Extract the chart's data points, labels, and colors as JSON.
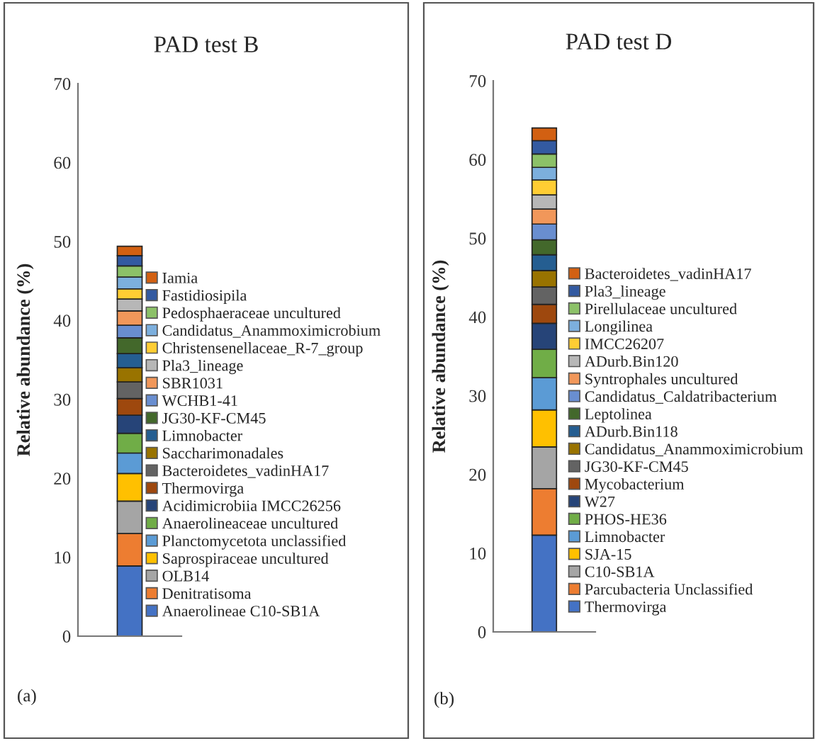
{
  "chart_data": [
    {
      "type": "bar",
      "title": "PAD test B",
      "ylabel": "Relative abundance (%)",
      "categories": [
        null
      ],
      "stacked": true,
      "ylim": [
        0,
        70
      ],
      "yticks": [
        0,
        10,
        20,
        30,
        40,
        50,
        60,
        70
      ],
      "grid": false,
      "legend": "right",
      "annotations": [
        "(a)"
      ],
      "series": [
        {
          "name": "Anaerolineae C10-SB1A",
          "color": "#4472c4",
          "values": [
            8.9
          ]
        },
        {
          "name": "Denitratisoma",
          "color": "#ed7d31",
          "values": [
            4.1
          ]
        },
        {
          "name": "OLB14",
          "color": "#a5a5a5",
          "values": [
            4.1
          ]
        },
        {
          "name": "Saprospiraceae uncultured",
          "color": "#ffc000",
          "values": [
            3.5
          ]
        },
        {
          "name": "Planctomycetota unclassified",
          "color": "#5b9bd5",
          "values": [
            2.6
          ]
        },
        {
          "name": "Anaerolineaceae uncultured",
          "color": "#70ad47",
          "values": [
            2.5
          ]
        },
        {
          "name": "Acidimicrobiia IMCC26256",
          "color": "#264478",
          "values": [
            2.3
          ]
        },
        {
          "name": "Thermovirga",
          "color": "#9e480e",
          "values": [
            2.1
          ]
        },
        {
          "name": "Bacteroidetes_vadinHA17",
          "color": "#636363",
          "values": [
            2.1
          ]
        },
        {
          "name": "Saccharimonadales",
          "color": "#997300",
          "values": [
            1.8
          ]
        },
        {
          "name": "Limnobacter",
          "color": "#255e91",
          "values": [
            1.8
          ]
        },
        {
          "name": "JG30-KF-CM45",
          "color": "#43682b",
          "values": [
            2.0
          ]
        },
        {
          "name": "WCHB1-41",
          "color": "#698ed0",
          "values": [
            1.6
          ]
        },
        {
          "name": "SBR1031",
          "color": "#f1975a",
          "values": [
            1.8
          ]
        },
        {
          "name": "Pla3_lineage",
          "color": "#b7b7b7",
          "values": [
            1.5
          ]
        },
        {
          "name": "Christensenellaceae_R-7_group",
          "color": "#ffcd33",
          "values": [
            1.3
          ]
        },
        {
          "name": "Candidatus_Anammoximicrobium",
          "color": "#7cafdd",
          "values": [
            1.5
          ]
        },
        {
          "name": "Pedosphaeraceae uncultured",
          "color": "#8cc168",
          "values": [
            1.4
          ]
        },
        {
          "name": "Fastidiosipila",
          "color": "#335aa1",
          "values": [
            1.3
          ]
        },
        {
          "name": "Iamia",
          "color": "#d26012",
          "values": [
            1.2
          ]
        }
      ]
    },
    {
      "type": "bar",
      "title": "PAD test D",
      "ylabel": "Relative abundance (%)",
      "categories": [
        null
      ],
      "stacked": true,
      "ylim": [
        0,
        70
      ],
      "yticks": [
        0,
        10,
        20,
        30,
        40,
        50,
        60,
        70
      ],
      "grid": false,
      "legend": "right",
      "annotations": [
        "(b)"
      ],
      "series": [
        {
          "name": "Thermovirga",
          "color": "#4472c4",
          "values": [
            12.3
          ]
        },
        {
          "name": "Parcubacteria Unclassified",
          "color": "#ed7d31",
          "values": [
            5.9
          ]
        },
        {
          "name": "C10-SB1A",
          "color": "#a5a5a5",
          "values": [
            5.3
          ]
        },
        {
          "name": "SJA-15",
          "color": "#ffc000",
          "values": [
            4.7
          ]
        },
        {
          "name": "Limnobacter",
          "color": "#5b9bd5",
          "values": [
            4.1
          ]
        },
        {
          "name": "PHOS-HE36",
          "color": "#70ad47",
          "values": [
            3.6
          ]
        },
        {
          "name": "W27",
          "color": "#264478",
          "values": [
            3.3
          ]
        },
        {
          "name": "Mycobacterium",
          "color": "#9e480e",
          "values": [
            2.4
          ]
        },
        {
          "name": "JG30-KF-CM45",
          "color": "#636363",
          "values": [
            2.2
          ]
        },
        {
          "name": "Candidatus_Anammoximicrobium",
          "color": "#997300",
          "values": [
            2.1
          ]
        },
        {
          "name": "ADurb.Bin118",
          "color": "#255e91",
          "values": [
            2.0
          ]
        },
        {
          "name": "Leptolinea",
          "color": "#43682b",
          "values": [
            1.9
          ]
        },
        {
          "name": "Candidatus_Caldatribacterium",
          "color": "#698ed0",
          "values": [
            2.0
          ]
        },
        {
          "name": "Syntrophales uncultured",
          "color": "#f1975a",
          "values": [
            1.9
          ]
        },
        {
          "name": "ADurb.Bin120",
          "color": "#b7b7b7",
          "values": [
            1.8
          ]
        },
        {
          "name": "IMCC26207",
          "color": "#ffcd33",
          "values": [
            1.9
          ]
        },
        {
          "name": "Longilinea",
          "color": "#7cafdd",
          "values": [
            1.6
          ]
        },
        {
          "name": "Pirellulaceae uncultured",
          "color": "#8cc168",
          "values": [
            1.7
          ]
        },
        {
          "name": "Pla3_lineage",
          "color": "#335aa1",
          "values": [
            1.7
          ]
        },
        {
          "name": "Bacteroidetes_vadinHA17",
          "color": "#d26012",
          "values": [
            1.6
          ]
        }
      ]
    }
  ]
}
